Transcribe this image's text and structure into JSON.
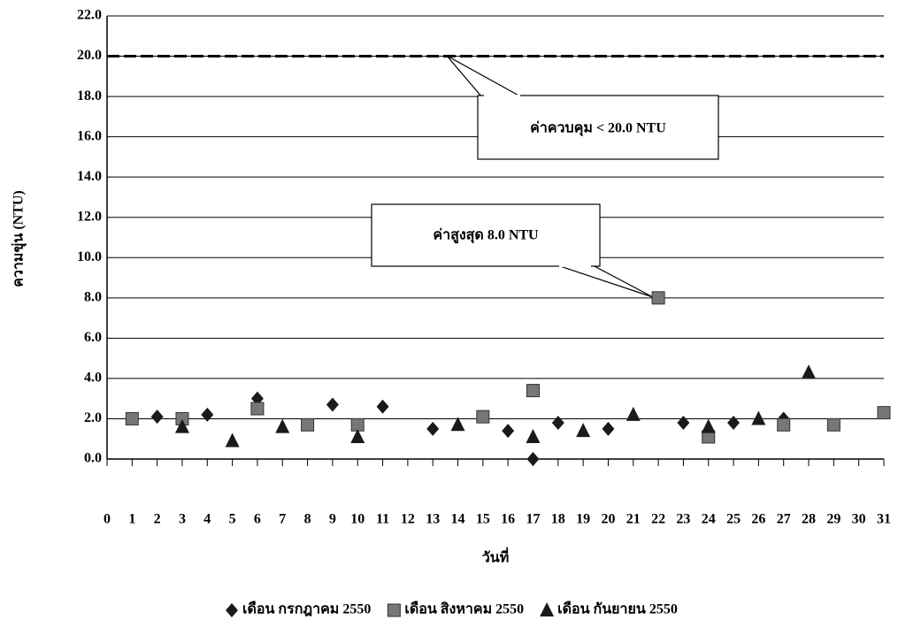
{
  "chart_data": {
    "type": "scatter",
    "x_label": "วันที่",
    "y_label": "ความขุ่น (NTU)",
    "xlim": [
      0,
      31
    ],
    "xticks": [
      0,
      1,
      2,
      3,
      4,
      5,
      6,
      7,
      8,
      9,
      10,
      11,
      12,
      13,
      14,
      15,
      16,
      17,
      18,
      19,
      20,
      21,
      22,
      23,
      24,
      25,
      26,
      27,
      28,
      29,
      30,
      31
    ],
    "ylim": [
      0,
      22
    ],
    "yticks": [
      {
        "value": 0,
        "label": "0.0"
      },
      {
        "value": 2,
        "label": "2.0"
      },
      {
        "value": 4,
        "label": "4.0"
      },
      {
        "value": 6,
        "label": "6.0"
      },
      {
        "value": 8,
        "label": "8.0"
      },
      {
        "value": 10,
        "label": "10.0"
      },
      {
        "value": 12,
        "label": "12.0"
      },
      {
        "value": 14,
        "label": "14.0"
      },
      {
        "value": 16,
        "label": "16.0"
      },
      {
        "value": 18,
        "label": "18.0"
      },
      {
        "value": 20,
        "label": "20.0"
      },
      {
        "value": 22,
        "label": "22.0"
      }
    ],
    "grid": true,
    "control_line": 20,
    "annotations": [
      "ค่าควบคุม < 20.0 NTU",
      "ค่าสูงสุด 8.0 NTU"
    ],
    "series": [
      {
        "name": "เดือน กรกฎาคม 2550",
        "marker": "diamond",
        "color": "#1a1a1a",
        "x": [
          2,
          4,
          6,
          9,
          11,
          13,
          16,
          17,
          18,
          20,
          23,
          25,
          27
        ],
        "values": [
          2.1,
          2.2,
          3.0,
          2.7,
          2.6,
          1.5,
          1.4,
          0.0,
          1.8,
          1.5,
          1.8,
          1.8,
          2.0
        ]
      },
      {
        "name": "เดือน สิงหาคม 2550",
        "marker": "square",
        "color": "#777777",
        "x": [
          1,
          3,
          6,
          8,
          10,
          15,
          17,
          22,
          24,
          27,
          29,
          31
        ],
        "values": [
          2.0,
          2.0,
          2.5,
          1.7,
          1.7,
          2.1,
          3.4,
          8.0,
          1.1,
          1.7,
          1.7,
          2.3
        ]
      },
      {
        "name": "เดือน กันยายน 2550",
        "marker": "triangle",
        "color": "#1a1a1a",
        "x": [
          3,
          5,
          7,
          10,
          14,
          17,
          19,
          21,
          24,
          26,
          28
        ],
        "values": [
          1.6,
          0.9,
          1.6,
          1.1,
          1.7,
          1.1,
          1.4,
          2.2,
          1.6,
          2.0,
          4.3
        ]
      }
    ]
  }
}
